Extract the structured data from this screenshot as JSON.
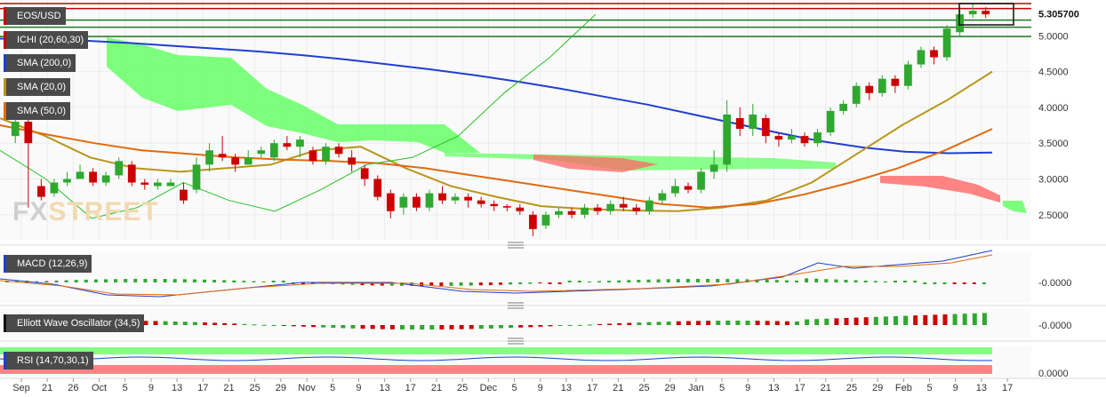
{
  "watermark": {
    "left": "FX",
    "right": "STREET"
  },
  "chart_data": [
    {
      "type": "line",
      "title": "EOS/USD",
      "last_price_label": "5.305700",
      "y_ticks": [
        5.0,
        4.5,
        4.0,
        3.5,
        3.0,
        2.5
      ],
      "y_tick_labels": [
        "5.0000",
        "4.5000",
        "4.0000",
        "3.5000",
        "3.0000",
        "2.5000"
      ],
      "ylim": [
        2.15,
        5.5
      ],
      "x_tick_labels": [
        "Sep",
        "21",
        "26",
        "Oct",
        "5",
        "9",
        "13",
        "17",
        "21",
        "25",
        "29",
        "Nov",
        "5",
        "9",
        "13",
        "17",
        "21",
        "25",
        "Dec",
        "5",
        "9",
        "13",
        "17",
        "21",
        "25",
        "29",
        "Jan",
        "5",
        "9",
        "13",
        "17",
        "21",
        "25",
        "29",
        "Feb",
        "5",
        "9",
        "13",
        "17"
      ],
      "indicators": [
        "ICHI (20,60,30)",
        "SMA (200,0)",
        "SMA (20,0)",
        "SMA (50,0)"
      ],
      "horizontal_levels": [
        {
          "value": 5.45,
          "color": "#cc0000"
        },
        {
          "value": 5.38,
          "color": "#cc0000"
        },
        {
          "value": 5.22,
          "color": "#1e7a1e"
        },
        {
          "value": 5.12,
          "color": "#1e7a1e"
        },
        {
          "value": 4.99,
          "color": "#1e7a1e"
        }
      ],
      "series": [
        {
          "name": "SMA (200,0)",
          "color": "#1f3fcf",
          "values": [
            4.96,
            4.95,
            4.93,
            4.9,
            4.86,
            4.82,
            4.78,
            4.73,
            4.67,
            4.6,
            4.53,
            4.45,
            4.36,
            4.26,
            4.15,
            4.04,
            3.91,
            3.78,
            3.65,
            3.53,
            3.44,
            3.38,
            3.36,
            3.37
          ]
        },
        {
          "name": "SMA (20,0)",
          "color": "#b8961a",
          "values": [
            3.85,
            3.6,
            3.3,
            3.15,
            3.1,
            3.15,
            3.2,
            3.4,
            3.45,
            3.15,
            2.9,
            2.75,
            2.62,
            2.58,
            2.56,
            2.55,
            2.6,
            2.7,
            2.95,
            3.35,
            3.75,
            4.1,
            4.5
          ]
        },
        {
          "name": "SMA (50,0)",
          "color": "#e06a10",
          "values": [
            3.75,
            3.62,
            3.5,
            3.4,
            3.35,
            3.3,
            3.27,
            3.25,
            3.22,
            3.15,
            3.05,
            2.95,
            2.85,
            2.75,
            2.65,
            2.6,
            2.65,
            2.78,
            2.95,
            3.15,
            3.4,
            3.7
          ]
        },
        {
          "name": "ICHI (20,60,30)",
          "color": "#26c026",
          "values": [
            3.4,
            3.0,
            2.45,
            2.6,
            2.95,
            2.7,
            2.55,
            2.85,
            3.2,
            3.3,
            3.6,
            4.2,
            4.7,
            5.3
          ]
        }
      ],
      "candles": [
        [
          3.6,
          3.8,
          3.9,
          3.5
        ],
        [
          3.8,
          3.5,
          3.85,
          2.6
        ],
        [
          2.9,
          2.75,
          3.0,
          2.7
        ],
        [
          2.8,
          2.95,
          3.0,
          2.75
        ],
        [
          2.95,
          3.0,
          3.1,
          2.9
        ],
        [
          3.0,
          3.1,
          3.2,
          3.0
        ],
        [
          3.1,
          2.95,
          3.15,
          2.9
        ],
        [
          2.95,
          3.05,
          3.1,
          2.9
        ],
        [
          3.05,
          3.25,
          3.3,
          3.0
        ],
        [
          3.2,
          2.95,
          3.25,
          2.9
        ],
        [
          2.95,
          2.92,
          3.0,
          2.85
        ],
        [
          2.9,
          2.95,
          3.0,
          2.85
        ],
        [
          2.9,
          2.95,
          3.0,
          2.9
        ],
        [
          2.85,
          2.7,
          2.95,
          2.65
        ],
        [
          2.85,
          3.2,
          3.3,
          2.8
        ],
        [
          3.2,
          3.4,
          3.5,
          3.1
        ],
        [
          3.35,
          3.3,
          3.6,
          3.25
        ],
        [
          3.3,
          3.2,
          3.35,
          3.1
        ],
        [
          3.2,
          3.3,
          3.4,
          3.2
        ],
        [
          3.35,
          3.4,
          3.45,
          3.3
        ],
        [
          3.3,
          3.5,
          3.55,
          3.25
        ],
        [
          3.5,
          3.45,
          3.6,
          3.4
        ],
        [
          3.45,
          3.55,
          3.6,
          3.3
        ],
        [
          3.4,
          3.25,
          3.45,
          3.2
        ],
        [
          3.25,
          3.45,
          3.5,
          3.2
        ],
        [
          3.45,
          3.35,
          3.5,
          3.3
        ],
        [
          3.3,
          3.2,
          3.4,
          3.1
        ],
        [
          3.15,
          3.0,
          3.2,
          2.9
        ],
        [
          3.0,
          2.75,
          3.05,
          2.7
        ],
        [
          2.8,
          2.55,
          2.85,
          2.45
        ],
        [
          2.6,
          2.75,
          2.8,
          2.5
        ],
        [
          2.75,
          2.6,
          2.8,
          2.55
        ],
        [
          2.6,
          2.8,
          2.85,
          2.55
        ],
        [
          2.8,
          2.7,
          2.9,
          2.65
        ],
        [
          2.7,
          2.75,
          2.8,
          2.65
        ],
        [
          2.75,
          2.7,
          2.8,
          2.6
        ],
        [
          2.7,
          2.65,
          2.75,
          2.6
        ],
        [
          2.65,
          2.62,
          2.7,
          2.55
        ],
        [
          2.62,
          2.6,
          2.65,
          2.55
        ],
        [
          2.6,
          2.55,
          2.65,
          2.5
        ],
        [
          2.5,
          2.3,
          2.55,
          2.2
        ],
        [
          2.35,
          2.5,
          2.55,
          2.3
        ],
        [
          2.5,
          2.55,
          2.6,
          2.45
        ],
        [
          2.55,
          2.5,
          2.6,
          2.45
        ],
        [
          2.5,
          2.6,
          2.65,
          2.45
        ],
        [
          2.6,
          2.55,
          2.65,
          2.5
        ],
        [
          2.55,
          2.65,
          2.7,
          2.5
        ],
        [
          2.65,
          2.6,
          2.75,
          2.55
        ],
        [
          2.6,
          2.55,
          2.65,
          2.5
        ],
        [
          2.55,
          2.7,
          2.75,
          2.5
        ],
        [
          2.7,
          2.8,
          2.85,
          2.65
        ],
        [
          2.8,
          2.9,
          3.0,
          2.75
        ],
        [
          2.9,
          2.85,
          2.95,
          2.8
        ],
        [
          2.85,
          3.1,
          3.15,
          2.8
        ],
        [
          3.1,
          3.2,
          3.4,
          3.0
        ],
        [
          3.2,
          3.9,
          4.1,
          3.1
        ],
        [
          3.85,
          3.7,
          4.0,
          3.6
        ],
        [
          3.7,
          3.9,
          4.05,
          3.6
        ],
        [
          3.85,
          3.6,
          3.9,
          3.5
        ],
        [
          3.6,
          3.55,
          3.65,
          3.45
        ],
        [
          3.55,
          3.6,
          3.7,
          3.5
        ],
        [
          3.6,
          3.5,
          3.65,
          3.45
        ],
        [
          3.5,
          3.65,
          3.7,
          3.45
        ],
        [
          3.65,
          3.95,
          4.0,
          3.6
        ],
        [
          3.95,
          4.05,
          4.1,
          3.9
        ],
        [
          4.05,
          4.3,
          4.35,
          4.0
        ],
        [
          4.3,
          4.2,
          4.35,
          4.1
        ],
        [
          4.2,
          4.4,
          4.45,
          4.15
        ],
        [
          4.4,
          4.3,
          4.45,
          4.2
        ],
        [
          4.3,
          4.6,
          4.65,
          4.25
        ],
        [
          4.6,
          4.8,
          4.85,
          4.55
        ],
        [
          4.8,
          4.7,
          4.85,
          4.6
        ],
        [
          4.7,
          5.1,
          5.15,
          4.65
        ],
        [
          5.05,
          5.3,
          5.4,
          5.0
        ],
        [
          5.3,
          5.35,
          5.45,
          5.25
        ],
        [
          5.35,
          5.3,
          5.4,
          5.25
        ]
      ]
    },
    {
      "type": "line",
      "title": "MACD (12,26,9)",
      "y_tick_labels": [
        "-0.0000"
      ],
      "series": [
        {
          "name": "MACD",
          "color": "#1f3fcf"
        },
        {
          "name": "Signal",
          "color": "#e06a10"
        }
      ]
    },
    {
      "type": "bar",
      "title": "Elliott Wave Oscillator (34,5)",
      "y_tick_labels": [
        "-0.0000"
      ]
    },
    {
      "type": "line",
      "title": "RSI (14,70,30,1)",
      "y_tick_labels": [
        "0.0000"
      ],
      "series": [
        {
          "name": "RSI",
          "color": "#1f3fcf"
        }
      ]
    }
  ],
  "colors": {
    "up": "#2fa82f",
    "down": "#cc0000",
    "label_bg": "#4a4a4a",
    "cloud_green": "#66ff66",
    "cloud_red": "#ff6666"
  }
}
